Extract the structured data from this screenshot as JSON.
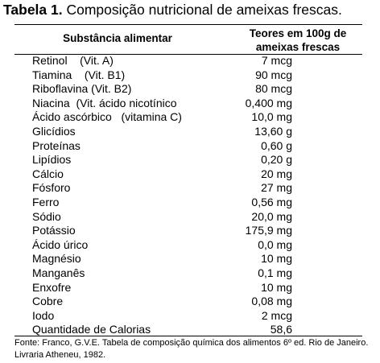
{
  "caption": {
    "label": "Tabela 1.",
    "text": "Composição nutricional de ameixas frescas."
  },
  "table": {
    "headers": [
      "Substância alimentar",
      "Teores em 100g de ameixas frescas"
    ],
    "rows": [
      [
        "Retinol    (Vit. A)",
        "7 mcg"
      ],
      [
        "Tiamina    (Vit. B1)",
        "90 mcg"
      ],
      [
        "Riboflavina (Vit. B2)",
        "80 mcg"
      ],
      [
        "Niacina  (Vit. ácido nicotínico",
        "0,400 mg"
      ],
      [
        "Ácido ascórbico   (vitamina C)",
        "10,0 mg"
      ],
      [
        "Glicídios",
        "13,60 g"
      ],
      [
        "Proteínas",
        "0,60 g"
      ],
      [
        "Lipídios",
        "0,20 g"
      ],
      [
        "Cálcio",
        "20 mg"
      ],
      [
        "Fósforo",
        "27 mg"
      ],
      [
        "Ferro",
        "0,56 mg"
      ],
      [
        "Sódio",
        "20,0 mg"
      ],
      [
        "Potássio",
        "175,9 mg"
      ],
      [
        "Ácido úrico",
        "0,0 mg"
      ],
      [
        "Magnésio",
        "10 mg"
      ],
      [
        "Manganês",
        "0,1 mg"
      ],
      [
        "Enxofre",
        "10 mg"
      ],
      [
        "Cobre",
        "0,08 mg"
      ],
      [
        "Iodo",
        "2 mcg"
      ],
      [
        "Quantidade de Calorias",
        "58,6"
      ]
    ]
  },
  "source": "Fonte:  Franco, G.V.E.  Tabela de  composição química dos alimentos 6º ed. Rio de Janeiro.  Livraria  Atheneu, 1982."
}
